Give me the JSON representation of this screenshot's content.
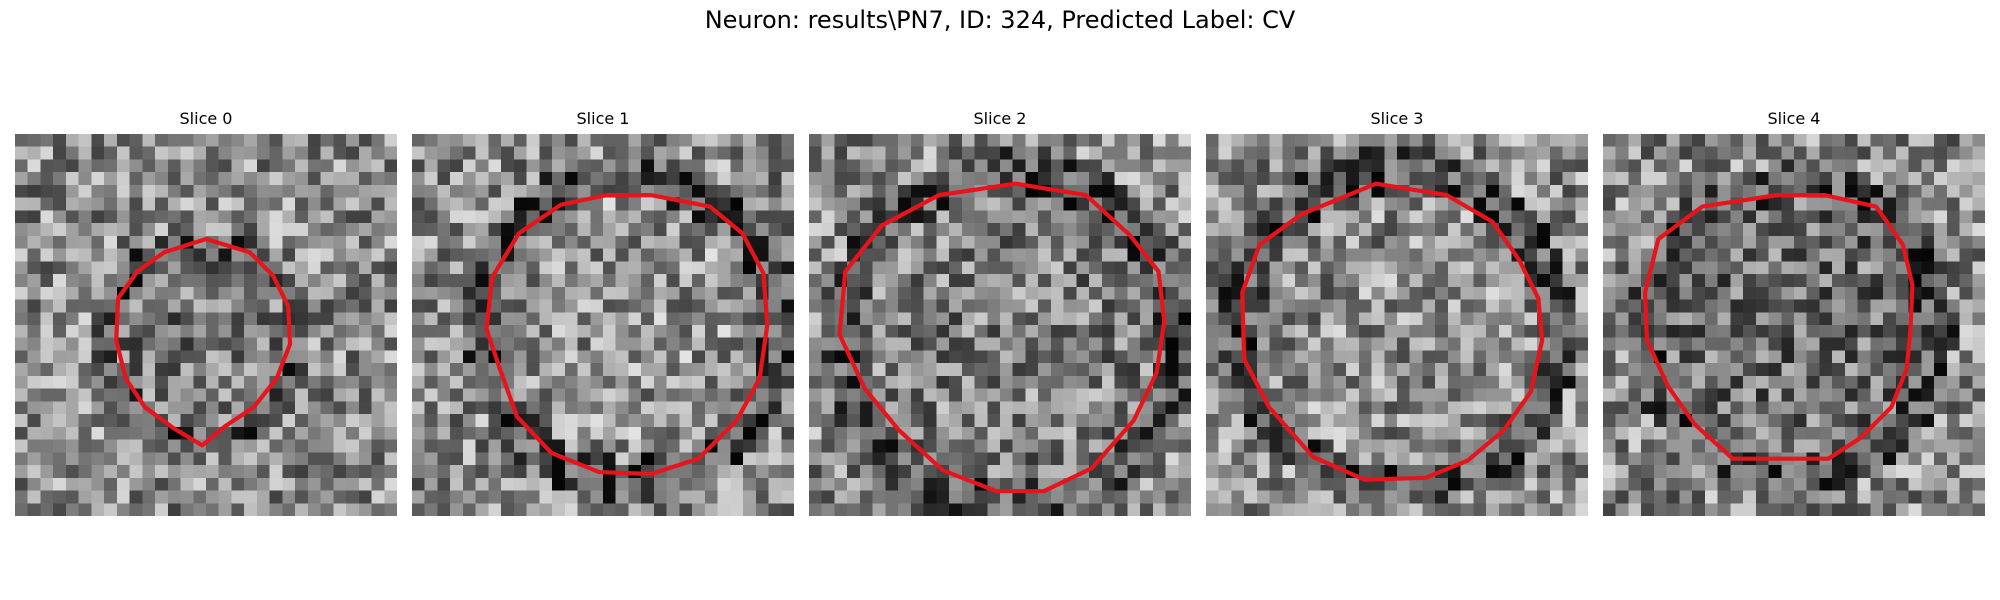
{
  "figure": {
    "title": "Neuron: results\\PN7, ID: 324, Predicted Label: CV",
    "contour_color": "#e8141c"
  },
  "slices": [
    {
      "title": "Slice 0",
      "seed": 11,
      "cell_shade": 0.47,
      "contour": [
        [
          10,
          5.5
        ],
        [
          12.3,
          6.2
        ],
        [
          13.5,
          7.4
        ],
        [
          14.3,
          9
        ],
        [
          14.4,
          11
        ],
        [
          13.7,
          12.8
        ],
        [
          12.5,
          14.3
        ],
        [
          11,
          15.3
        ],
        [
          9.8,
          16.3
        ],
        [
          8.3,
          15.4
        ],
        [
          6.8,
          14.3
        ],
        [
          5.8,
          12.8
        ],
        [
          5.3,
          10.8
        ],
        [
          5.4,
          8.6
        ],
        [
          6.4,
          7.2
        ],
        [
          7.8,
          6.2
        ]
      ]
    },
    {
      "title": "Slice 1",
      "seed": 23,
      "cell_shade": 0.58,
      "contour": [
        [
          12.5,
          3.2
        ],
        [
          15.6,
          3.8
        ],
        [
          17.3,
          5.2
        ],
        [
          18.4,
          7.3
        ],
        [
          18.6,
          10
        ],
        [
          18.2,
          12.8
        ],
        [
          17,
          15
        ],
        [
          15,
          17
        ],
        [
          12.5,
          17.8
        ],
        [
          9.8,
          17.7
        ],
        [
          7.3,
          16.7
        ],
        [
          5.5,
          14.8
        ],
        [
          4.6,
          12.3
        ],
        [
          3.9,
          10.2
        ],
        [
          4.2,
          7.5
        ],
        [
          5.6,
          5.2
        ],
        [
          7.8,
          3.7
        ],
        [
          10.2,
          3.2
        ]
      ]
    },
    {
      "title": "Slice 2",
      "seed": 37,
      "cell_shade": 0.5,
      "contour": [
        [
          10.8,
          2.6
        ],
        [
          14.5,
          3.2
        ],
        [
          16.8,
          5.3
        ],
        [
          18.3,
          7.2
        ],
        [
          18.6,
          9.8
        ],
        [
          18.2,
          12.5
        ],
        [
          17,
          15
        ],
        [
          14.8,
          17.5
        ],
        [
          12.3,
          18.7
        ],
        [
          9.8,
          18.7
        ],
        [
          7,
          17.6
        ],
        [
          4.7,
          15.5
        ],
        [
          2.9,
          13.3
        ],
        [
          1.6,
          10.5
        ],
        [
          1.9,
          7.2
        ],
        [
          3.8,
          4.8
        ],
        [
          6.8,
          3.2
        ]
      ]
    },
    {
      "title": "Slice 3",
      "seed": 51,
      "cell_shade": 0.56,
      "contour": [
        [
          8.9,
          2.6
        ],
        [
          12.6,
          3.2
        ],
        [
          15,
          4.6
        ],
        [
          16.4,
          6.6
        ],
        [
          17.4,
          8.6
        ],
        [
          17.6,
          10.8
        ],
        [
          17,
          13.5
        ],
        [
          15.6,
          15.5
        ],
        [
          13.7,
          17.1
        ],
        [
          11.5,
          18
        ],
        [
          8.3,
          18.1
        ],
        [
          5.6,
          16.9
        ],
        [
          3.3,
          14.3
        ],
        [
          2,
          11.8
        ],
        [
          1.9,
          8.3
        ],
        [
          2.8,
          5.8
        ],
        [
          5,
          4.2
        ],
        [
          7.2,
          3.3
        ]
      ]
    },
    {
      "title": "Slice 4",
      "seed": 67,
      "cell_shade": 0.44,
      "contour": [
        [
          9.1,
          3.2
        ],
        [
          11.6,
          3.2
        ],
        [
          14.3,
          3.8
        ],
        [
          15.7,
          5.8
        ],
        [
          16.2,
          7.9
        ],
        [
          16.1,
          10.2
        ],
        [
          15.9,
          12.3
        ],
        [
          15.1,
          14.3
        ],
        [
          13.5,
          15.9
        ],
        [
          11.8,
          17
        ],
        [
          9.6,
          17
        ],
        [
          6.8,
          17
        ],
        [
          4.8,
          15.2
        ],
        [
          3.4,
          13.2
        ],
        [
          2.3,
          10.8
        ],
        [
          2.2,
          8.3
        ],
        [
          2.9,
          5.5
        ],
        [
          5.2,
          3.8
        ]
      ]
    }
  ]
}
